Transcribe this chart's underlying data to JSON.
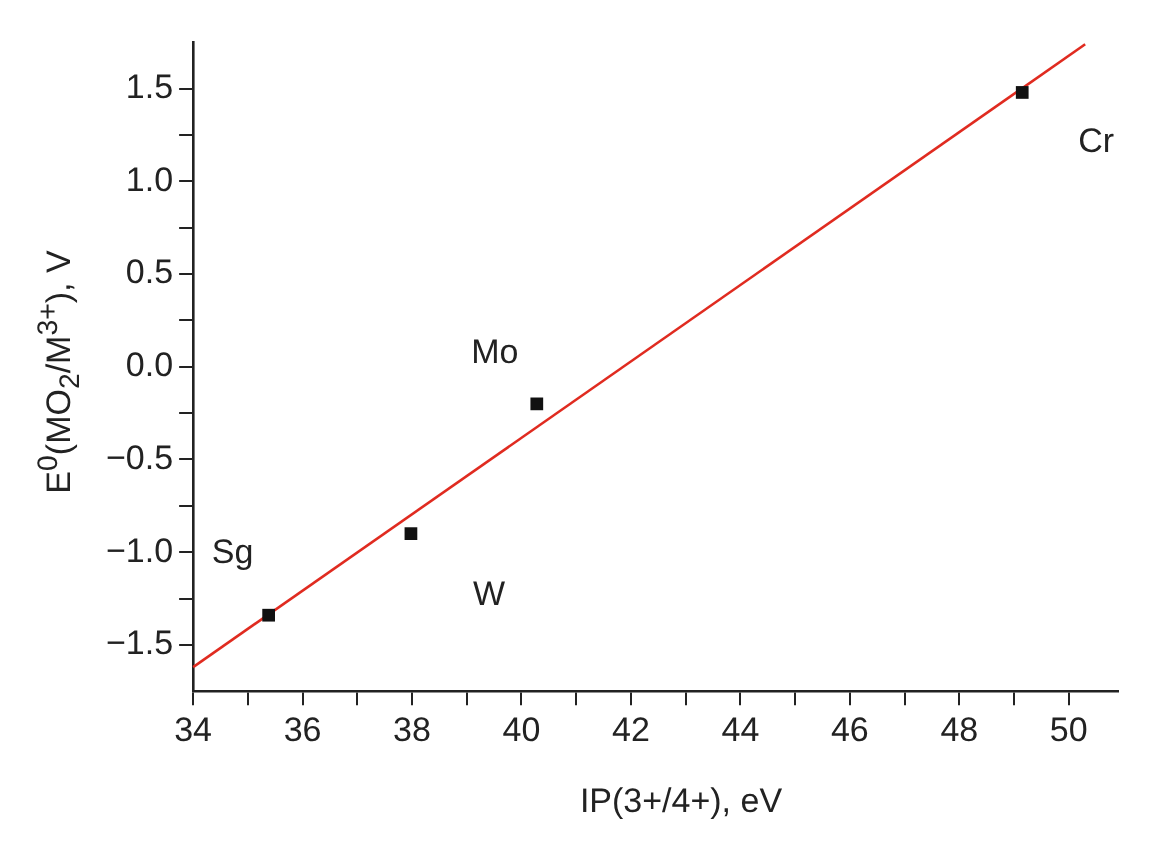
{
  "chart_data": {
    "type": "scatter",
    "xlabel": "IP(3+/4+), eV",
    "ylabel": "E$^{0}$(MO$_{2}$/M$^{3+}$), V",
    "xlim": [
      34,
      50.9
    ],
    "ylim": [
      -1.75,
      1.75
    ],
    "xticks": [
      34,
      {
        "value": 35,
        "label": null
      },
      36,
      {
        "value": 37,
        "label": null
      },
      38,
      {
        "value": 39,
        "label": null
      },
      40,
      {
        "value": 41,
        "label": null
      },
      42,
      {
        "value": 43,
        "label": null
      },
      44,
      {
        "value": 45,
        "label": null
      },
      46,
      {
        "value": 47,
        "label": null
      },
      48,
      {
        "value": 49,
        "label": null
      },
      50
    ],
    "yticks": [
      {
        "value": -1.5,
        "label": "−1.5"
      },
      {
        "value": -1.25,
        "label": null
      },
      {
        "value": -1,
        "label": "−1.0"
      },
      {
        "value": -0.75,
        "label": null
      },
      {
        "value": -0.5,
        "label": "−0.5"
      },
      {
        "value": -0.25,
        "label": null
      },
      {
        "value": 0,
        "label": "0.0"
      },
      {
        "value": 0.25,
        "label": null
      },
      {
        "value": 0.5,
        "label": "0.5"
      },
      {
        "value": 0.75,
        "label": null
      },
      {
        "value": 1,
        "label": "1.0"
      },
      {
        "value": 1.25,
        "label": null
      },
      {
        "value": 1.5,
        "label": "1.5"
      }
    ],
    "marker": "square",
    "grid": false,
    "legend": false,
    "series": [
      {
        "color": "#111111",
        "x": [
          35.38,
          37.98,
          40.28,
          49.15
        ],
        "values": [
          -1.34,
          -0.9,
          -0.2,
          1.48
        ]
      },
      {
        "type": "line",
        "color": "#e02b20",
        "marker": "none",
        "x": [
          34,
          50.3
        ],
        "values": [
          -1.62,
          1.74
        ]
      }
    ],
    "annotations": [
      {
        "text": "Sg",
        "x": 35.38,
        "y": -1.34
      },
      {
        "text": "W",
        "x": 37.98,
        "y": -0.9
      },
      {
        "text": "Mo",
        "x": 40.28,
        "y": -0.2
      },
      {
        "text": "Cr",
        "x": 49.15,
        "y": 1.48
      }
    ]
  }
}
